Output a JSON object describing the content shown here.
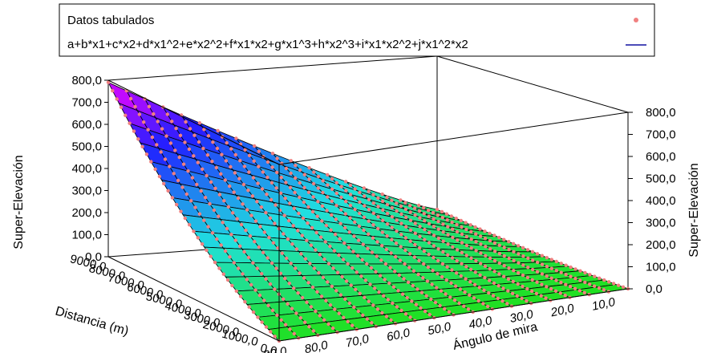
{
  "chart_data": {
    "type": "surface3d",
    "legend": {
      "placement": "top-center",
      "entries": [
        {
          "label": "Datos tabulados",
          "marker": "point",
          "color": "#f08080"
        },
        {
          "label": "a+b*x1+c*x2+d*x1^2+e*x2^2+f*x1*x2+g*x1^3+h*x2^3+i*x1*x2^2+j*x1^2*x2",
          "marker": "line",
          "color": "#1010a0"
        }
      ]
    },
    "z_axis": {
      "label": "Super-Elevación",
      "ticks": [
        "0,0",
        "100,0",
        "200,0",
        "300,0",
        "400,0",
        "500,0",
        "600,0",
        "700,0",
        "800,0"
      ],
      "range": [
        0,
        800
      ]
    },
    "distance_axis": {
      "label": "Distancia (m)",
      "ticks": [
        "0,0",
        "1000,0",
        "2000,0",
        "3000,0",
        "4000,0",
        "5000,0",
        "6000,0",
        "7000,0",
        "8000,0",
        "9000,0"
      ],
      "range": [
        0,
        9000
      ]
    },
    "angle_axis": {
      "label": "Ángulo de mira",
      "ticks": [
        "10,0",
        "20,0",
        "30,0",
        "40,0",
        "50,0",
        "60,0",
        "70,0",
        "80,0",
        "90,0"
      ],
      "range": [
        5,
        90
      ]
    },
    "surface": {
      "description_values": "z increases with distance and with angle of sight",
      "z_max": 790,
      "z_at_max_distance_min_angle": 105,
      "z_at_max_distance_max_angle": 790,
      "z_at_min_distance": 0
    },
    "colors": {
      "low": "#20e020",
      "mid_low": "#20e0e0",
      "mid_high": "#2020ff",
      "high": "#ff00ff",
      "grid": "#000000",
      "points": "#f08080"
    }
  }
}
